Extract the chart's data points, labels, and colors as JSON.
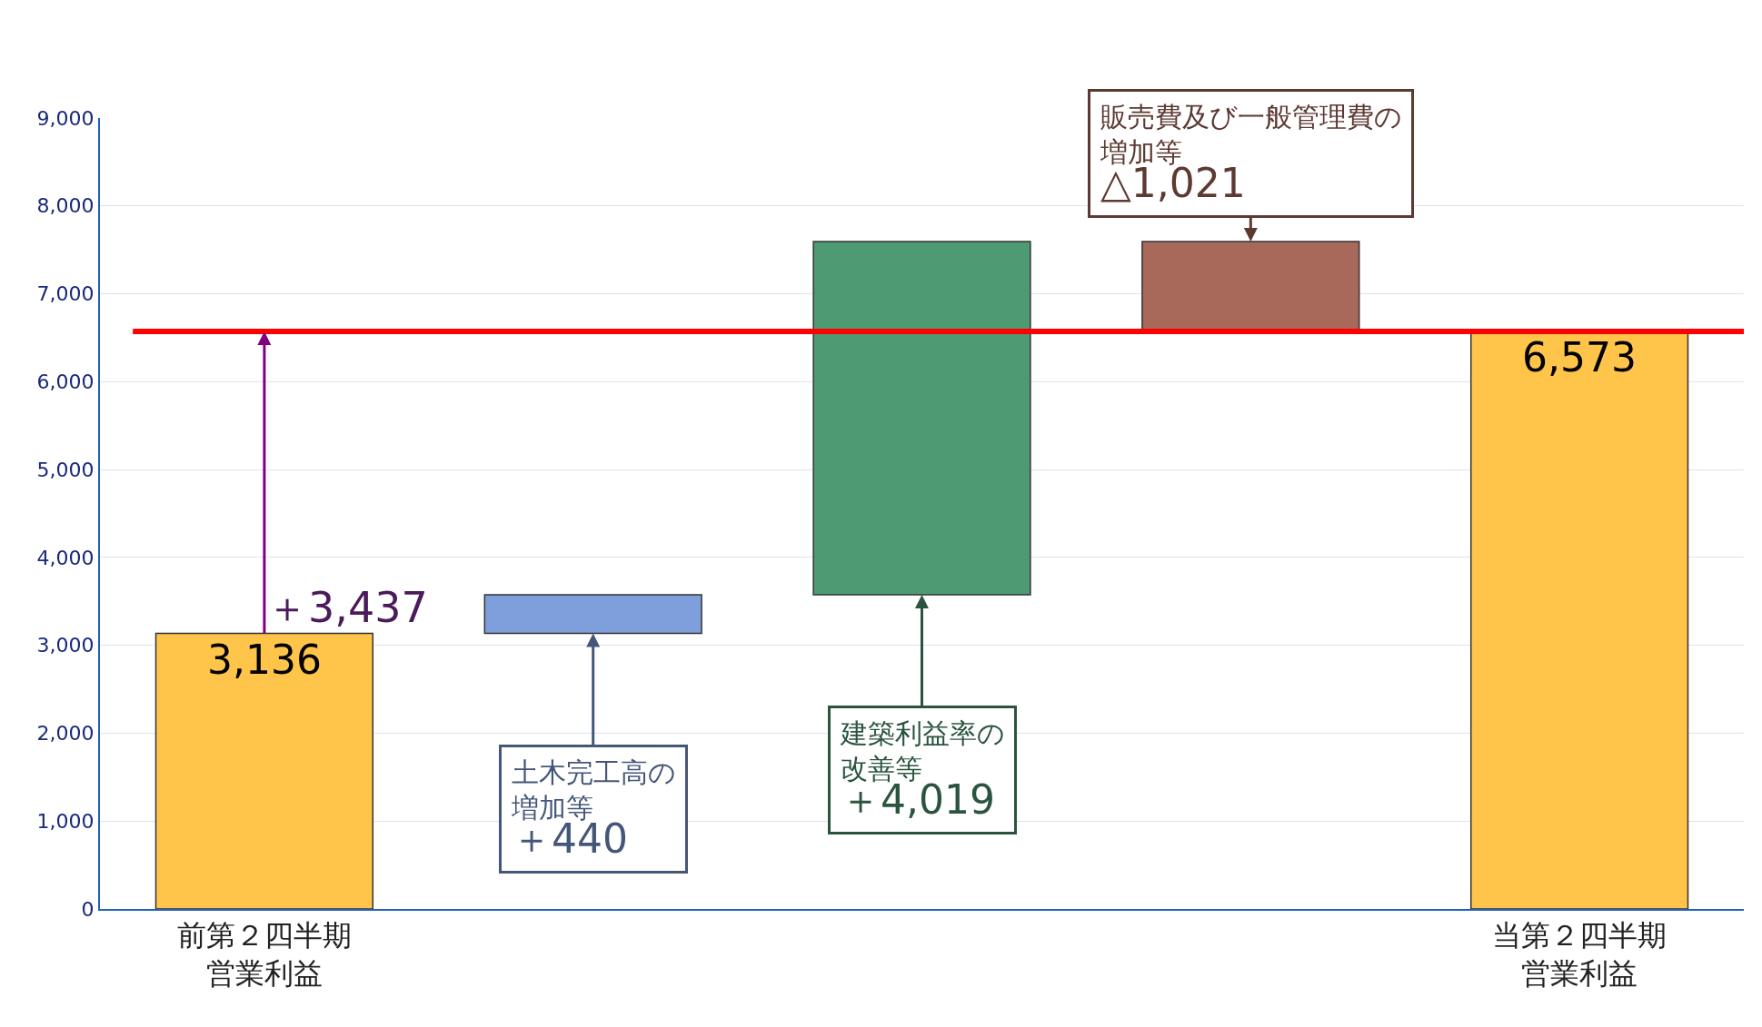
{
  "chart_data": {
    "type": "bar",
    "categories": [
      "前第２四半期営業利益",
      null,
      null,
      null,
      "当第２四半期営業利益"
    ],
    "values": [
      3136,
      440,
      4019,
      -1021,
      6573
    ],
    "base": [
      0,
      3136,
      3576,
      7595,
      0
    ],
    "colors": [
      "#ffc44a",
      "#7f9fdc",
      "#4e9a72",
      "#a8685a",
      "#ffc44a"
    ],
    "value_labels": [
      "3,136",
      null,
      null,
      null,
      "6,573"
    ],
    "ylim": [
      0,
      9000
    ],
    "yticks": [
      {
        "value": 0,
        "label": "0"
      },
      {
        "value": 1000,
        "label": "1,000"
      },
      {
        "value": 2000,
        "label": "2,000"
      },
      {
        "value": 3000,
        "label": "3,000"
      },
      {
        "value": 4000,
        "label": "4,000"
      },
      {
        "value": 5000,
        "label": "5,000"
      },
      {
        "value": 6000,
        "label": "6,000"
      },
      {
        "value": 7000,
        "label": "7,000"
      },
      {
        "value": 8000,
        "label": "8,000"
      },
      {
        "value": 9000,
        "label": "9,000"
      }
    ],
    "grid": "y",
    "ref_lines": [
      {
        "axis": "y",
        "value": 6573,
        "color": "#ff0000"
      }
    ],
    "annotations": [
      {
        "text": "＋3,437",
        "x": "前第２四半期営業利益",
        "y": 6573
      },
      {
        "text": "土木完工高の増加等",
        "y": 3136
      },
      {
        "text": "建築利益率の改善等",
        "y": 3576
      },
      {
        "text": "販売費及び一般管理費の増加等",
        "y": 7595
      },
      "＋440",
      "＋4,019",
      "△1,021"
    ]
  }
}
